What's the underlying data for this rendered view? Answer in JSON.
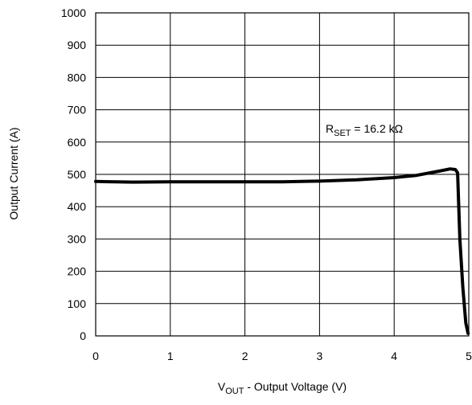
{
  "chart_data": {
    "type": "line",
    "title": "",
    "xlabel": {
      "prefix": "V",
      "subscript": "OUT",
      "rest": " - Output Voltage (V)"
    },
    "ylabel": "Output Current (A)",
    "xlim": [
      0,
      5
    ],
    "ylim": [
      0,
      1000
    ],
    "xticks": [
      "0",
      "1",
      "2",
      "3",
      "4",
      "5"
    ],
    "yticks": [
      "0",
      "100",
      "200",
      "300",
      "400",
      "500",
      "600",
      "700",
      "800",
      "900",
      "1000"
    ],
    "grid": true,
    "annotation": {
      "prefix": "R",
      "subscript": "SET",
      "rest": " = 16.2 kΩ"
    },
    "series": [
      {
        "x": [
          0,
          0.5,
          1,
          1.5,
          2,
          2.5,
          3,
          3.5,
          4,
          4.3,
          4.6,
          4.75,
          4.82,
          4.85,
          4.88,
          4.92,
          4.96,
          4.99
        ],
        "y": [
          478,
          476,
          477,
          477,
          477,
          477,
          479,
          483,
          490,
          497,
          510,
          517,
          515,
          505,
          300,
          150,
          40,
          8
        ]
      }
    ]
  }
}
